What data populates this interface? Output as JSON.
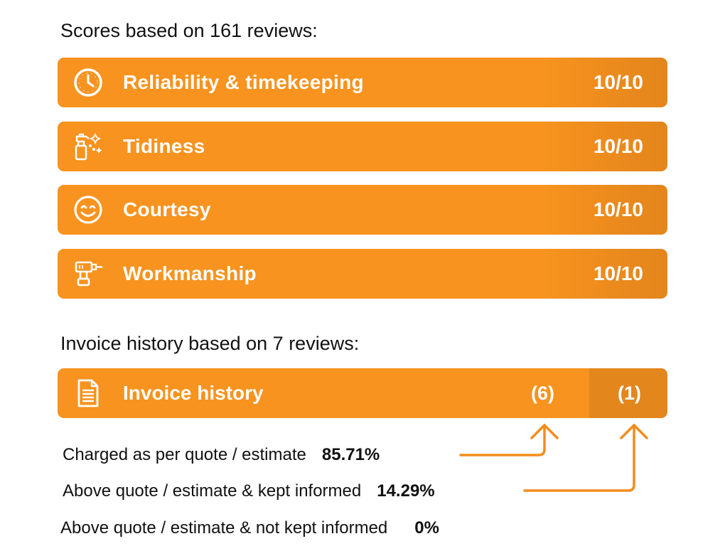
{
  "scores": {
    "heading": "Scores based on 161 reviews:",
    "items": [
      {
        "label": "Reliability & timekeeping",
        "score": "10/10",
        "icon": "clock-icon"
      },
      {
        "label": "Tidiness",
        "score": "10/10",
        "icon": "spray-bottle-icon"
      },
      {
        "label": "Courtesy",
        "score": "10/10",
        "icon": "smiley-icon"
      },
      {
        "label": "Workmanship",
        "score": "10/10",
        "icon": "drill-icon"
      }
    ]
  },
  "invoice": {
    "heading": "Invoice history based on 7 reviews:",
    "label": "Invoice history",
    "icon": "document-icon",
    "count_left": "(6)",
    "count_right": "(1)",
    "stats": [
      {
        "label": "Charged as per quote / estimate",
        "pct": "85.71%"
      },
      {
        "label": "Above quote / estimate & kept informed",
        "pct": "14.29%"
      },
      {
        "label": "Above quote / estimate & not kept informed",
        "pct": "0%"
      }
    ]
  },
  "colors": {
    "accent": "#f7931e",
    "accent_dark": "#e3861c"
  }
}
